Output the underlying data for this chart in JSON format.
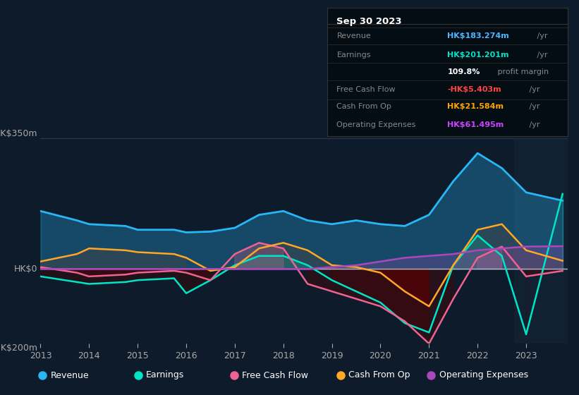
{
  "background_color": "#0d1b2a",
  "plot_bg_color": "#0d1b2a",
  "title_box": {
    "date": "Sep 30 2023",
    "rows": [
      {
        "label": "Revenue",
        "value": "HK$183.274m",
        "suffix": " /yr",
        "value_color": "#4db8ff"
      },
      {
        "label": "Earnings",
        "value": "HK$201.201m",
        "suffix": " /yr",
        "value_color": "#00e5c8"
      },
      {
        "label": "",
        "value": "109.8%",
        "suffix": " profit margin",
        "value_color": "#ffffff"
      },
      {
        "label": "Free Cash Flow",
        "value": "-HK$5.403m",
        "suffix": " /yr",
        "value_color": "#ff4444"
      },
      {
        "label": "Cash From Op",
        "value": "HK$21.584m",
        "suffix": " /yr",
        "value_color": "#ffa500"
      },
      {
        "label": "Operating Expenses",
        "value": "HK$61.495m",
        "suffix": " /yr",
        "value_color": "#cc44ff"
      }
    ]
  },
  "years": [
    2013,
    2013.75,
    2014,
    2014.75,
    2015,
    2015.75,
    2016,
    2016.5,
    2017,
    2017.5,
    2018,
    2018.5,
    2019,
    2019.5,
    2020,
    2020.5,
    2021,
    2021.5,
    2022,
    2022.5,
    2023,
    2023.75
  ],
  "revenue": [
    155,
    130,
    120,
    115,
    105,
    105,
    98,
    100,
    110,
    145,
    155,
    130,
    120,
    130,
    120,
    115,
    145,
    235,
    310,
    270,
    205,
    183
  ],
  "earnings": [
    -20,
    -35,
    -40,
    -35,
    -30,
    -25,
    -65,
    -30,
    10,
    35,
    35,
    10,
    -30,
    -60,
    -90,
    -145,
    -170,
    10,
    90,
    35,
    -175,
    201
  ],
  "free_cash_flow": [
    5,
    -10,
    -20,
    -15,
    -10,
    -5,
    -10,
    -30,
    40,
    70,
    55,
    -40,
    -60,
    -80,
    -100,
    -140,
    -200,
    -80,
    30,
    60,
    -20,
    -5
  ],
  "cash_from_op": [
    20,
    40,
    55,
    50,
    45,
    40,
    30,
    -5,
    5,
    55,
    70,
    50,
    10,
    5,
    -10,
    -60,
    -100,
    10,
    105,
    120,
    50,
    22
  ],
  "operating_expenses": [
    0,
    0,
    0,
    0,
    0,
    0,
    0,
    0,
    0,
    0,
    0,
    0,
    5,
    10,
    20,
    30,
    35,
    40,
    50,
    55,
    60,
    61
  ],
  "ylim": [
    -200,
    350
  ],
  "xticks": [
    2013,
    2014,
    2015,
    2016,
    2017,
    2018,
    2019,
    2020,
    2021,
    2022,
    2023
  ],
  "colors": {
    "revenue": "#29b6f6",
    "earnings": "#00e5c8",
    "free_cash_flow": "#f06292",
    "cash_from_op": "#ffa726",
    "operating_expenses": "#ab47bc",
    "zero_line": "#b0bec5"
  },
  "legend": [
    {
      "label": "Revenue",
      "color": "#29b6f6"
    },
    {
      "label": "Earnings",
      "color": "#00e5c8"
    },
    {
      "label": "Free Cash Flow",
      "color": "#f06292"
    },
    {
      "label": "Cash From Op",
      "color": "#ffa726"
    },
    {
      "label": "Operating Expenses",
      "color": "#ab47bc"
    }
  ]
}
